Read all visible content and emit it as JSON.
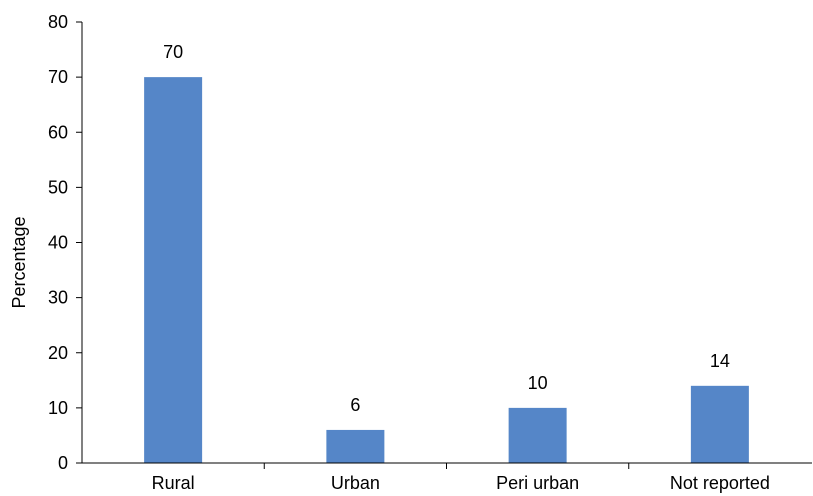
{
  "chart_data": {
    "type": "bar",
    "categories": [
      "Rural",
      "Urban",
      "Peri urban",
      "Not reported"
    ],
    "values": [
      70,
      6,
      10,
      14
    ],
    "data_labels": [
      "70",
      "6",
      "10",
      "14"
    ],
    "title": "",
    "xlabel": "",
    "ylabel": "Percentage",
    "ylim": [
      0,
      80
    ],
    "yticks": [
      0,
      10,
      20,
      30,
      40,
      50,
      60,
      70,
      80
    ],
    "grid": false,
    "bar_color": "#5586C8"
  }
}
